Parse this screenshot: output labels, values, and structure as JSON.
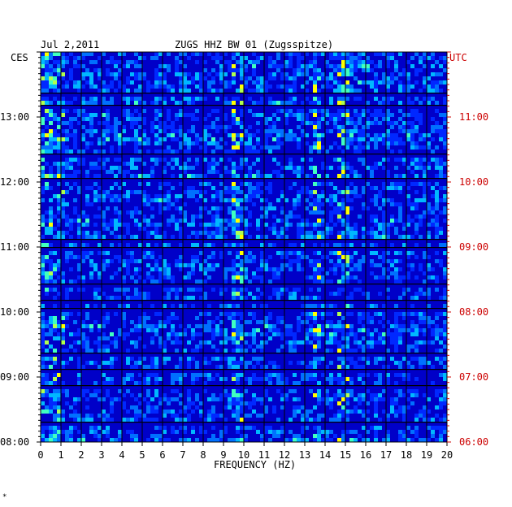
{
  "chart_data": {
    "type": "heatmap",
    "title_date": "Jul 2,2011",
    "title": "ZUGS HHZ BW 01 (Zugsspitze)",
    "left_axis_label": "CES",
    "right_axis_label": "UTC",
    "xlabel": "FREQUENCY (HZ)",
    "x_ticks": [
      "0",
      "1",
      "2",
      "3",
      "4",
      "5",
      "6",
      "7",
      "8",
      "9",
      "10",
      "11",
      "12",
      "13",
      "14",
      "15",
      "16",
      "17",
      "18",
      "19",
      "20"
    ],
    "xlim": [
      0,
      20
    ],
    "left_y_ticks": [
      "08:00",
      "09:00",
      "10:00",
      "11:00",
      "12:00",
      "13:00"
    ],
    "right_y_ticks": [
      "06:00",
      "07:00",
      "08:00",
      "09:00",
      "10:00",
      "11:00"
    ],
    "left_time_range": [
      "08:00",
      "14:00"
    ],
    "right_time_range": [
      "06:00",
      "12:00"
    ],
    "colors": {
      "background": "#0000c8",
      "grid": "#000000",
      "utc_label": "#cc0000",
      "axis_text": "#000000"
    },
    "notable_features": [
      {
        "freq_hz": 9.7,
        "description": "recurring green/yellow energy band"
      },
      {
        "freq_hz": 13.6,
        "description": "recurring cyan/yellow energy band"
      },
      {
        "freq_hz": 14.9,
        "description": "recurring cyan energy band"
      }
    ],
    "footnote": "*"
  }
}
